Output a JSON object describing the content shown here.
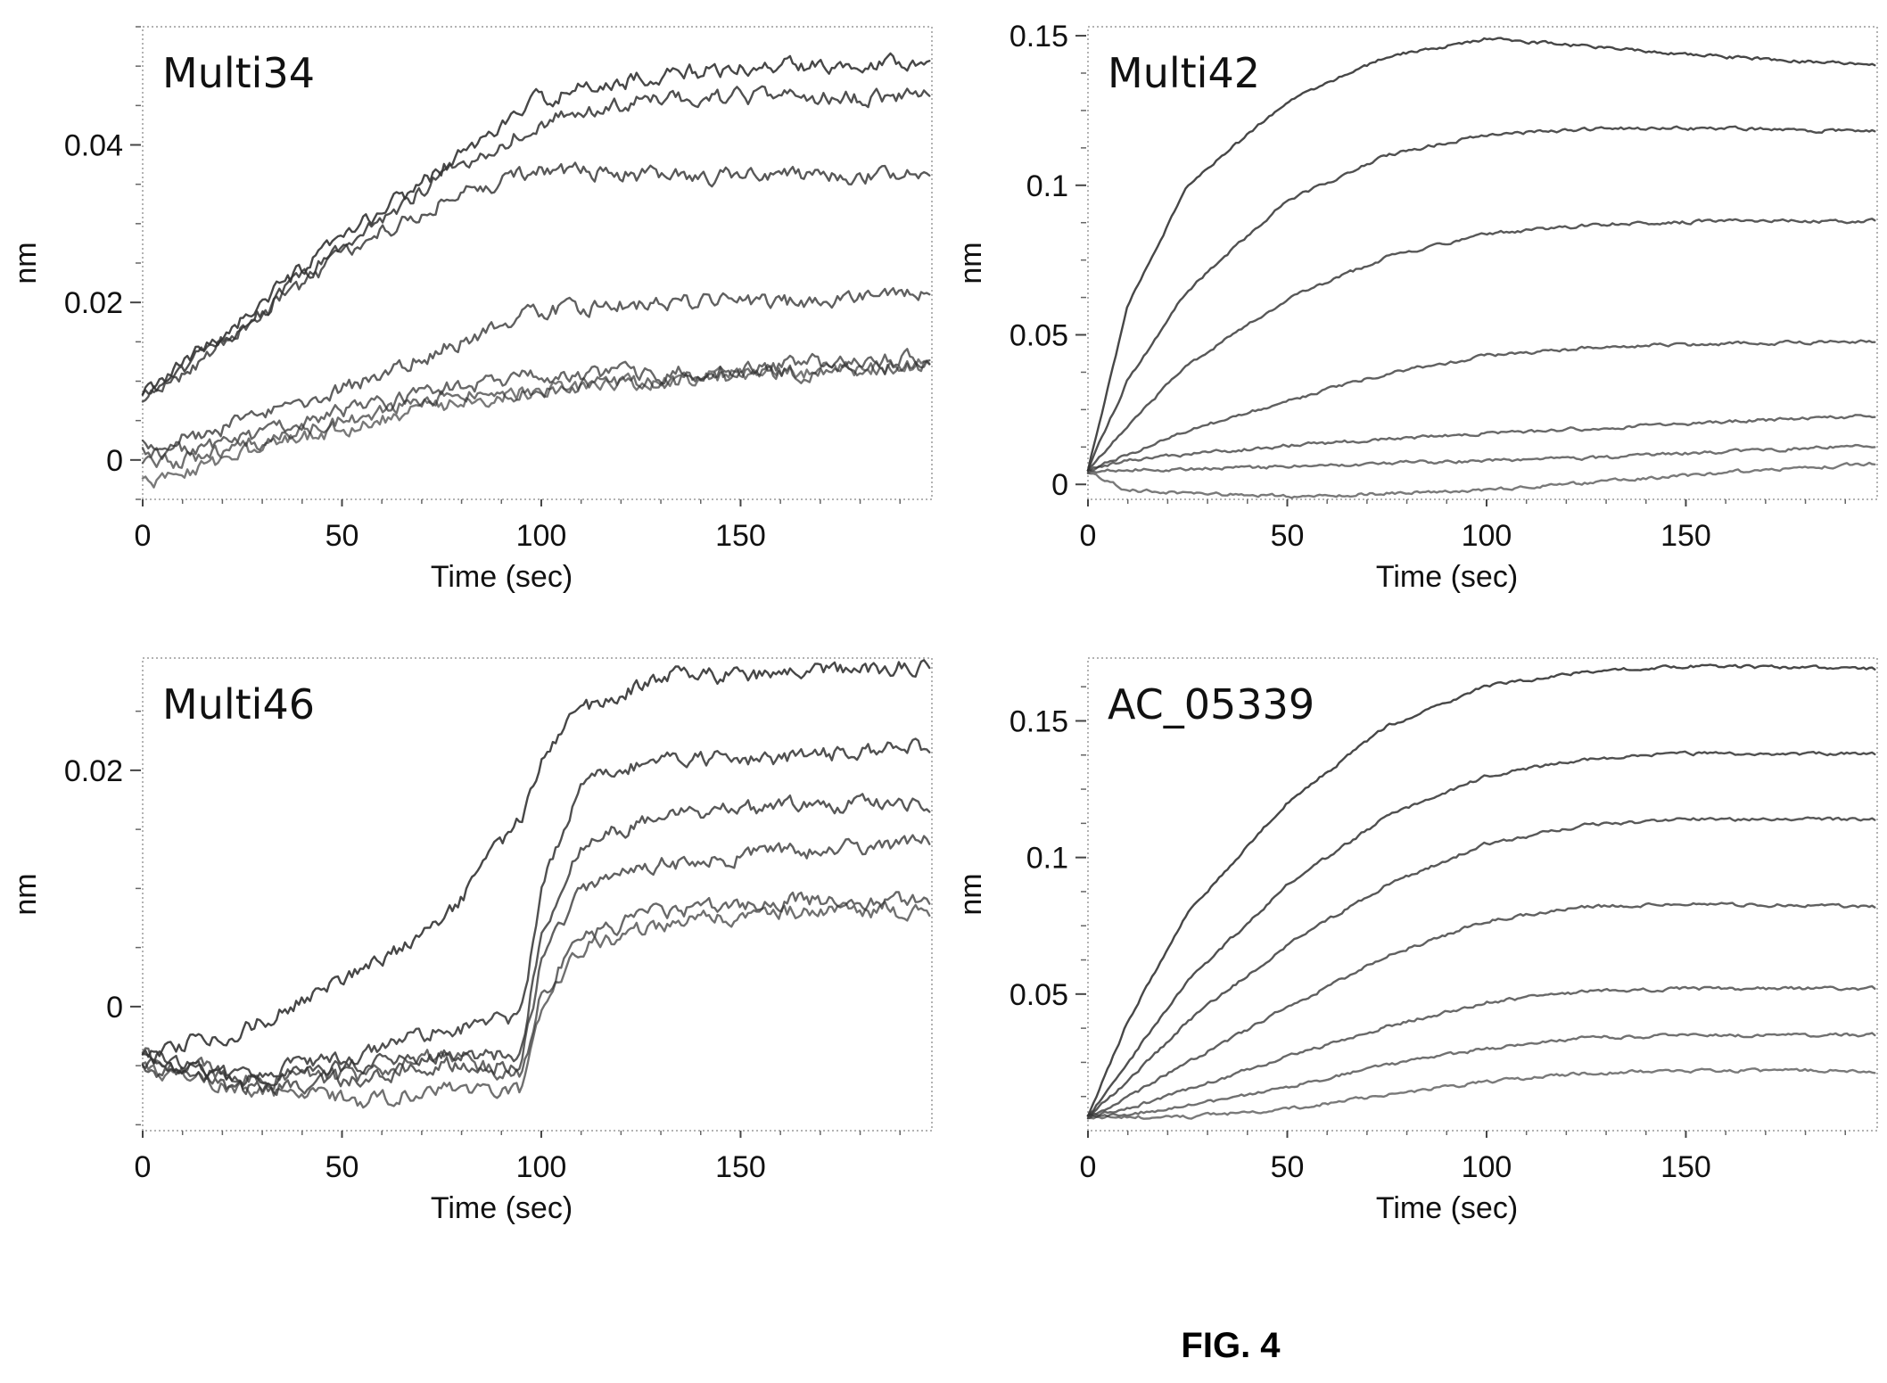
{
  "figure": {
    "caption": "FIG. 4"
  },
  "chart_data": [
    {
      "type": "line",
      "title": "Multi34",
      "xlabel": "Time (sec)",
      "ylabel": "nm",
      "xlim": [
        0,
        198
      ],
      "ylim": [
        -0.005,
        0.055
      ],
      "xticks": [
        0,
        50,
        100,
        150
      ],
      "xtick_labels": [
        "0",
        "50",
        "100",
        "150"
      ],
      "yticks": [
        0,
        0.02,
        0.04
      ],
      "ytick_labels": [
        "0",
        "0.02",
        "0.04"
      ],
      "grid": false,
      "legend": "none",
      "trace_color": "#333333",
      "series": [
        {
          "x": [
            0,
            20,
            50,
            75,
            100,
            130,
            160,
            198
          ],
          "values": [
            0.008,
            0.016,
            0.028,
            0.037,
            0.046,
            0.049,
            0.05,
            0.051
          ]
        },
        {
          "x": [
            0,
            20,
            50,
            75,
            100,
            130,
            160,
            198
          ],
          "values": [
            0.008,
            0.015,
            0.027,
            0.036,
            0.043,
            0.046,
            0.046,
            0.046
          ]
        },
        {
          "x": [
            0,
            20,
            50,
            75,
            100,
            130,
            160,
            198
          ],
          "values": [
            0.007,
            0.015,
            0.026,
            0.033,
            0.037,
            0.036,
            0.036,
            0.036
          ]
        },
        {
          "x": [
            0,
            20,
            50,
            75,
            100,
            130,
            160,
            198
          ],
          "values": [
            0.002,
            0.004,
            0.009,
            0.014,
            0.019,
            0.02,
            0.02,
            0.021
          ]
        },
        {
          "x": [
            0,
            20,
            50,
            75,
            100,
            130,
            160,
            198
          ],
          "values": [
            0.001,
            0.002,
            0.006,
            0.009,
            0.011,
            0.011,
            0.012,
            0.013
          ]
        },
        {
          "x": [
            0,
            20,
            50,
            75,
            100,
            130,
            160,
            198
          ],
          "values": [
            -0.001,
            0.001,
            0.005,
            0.008,
            0.009,
            0.01,
            0.011,
            0.012
          ]
        },
        {
          "x": [
            0,
            20,
            50,
            75,
            100,
            130,
            160,
            198
          ],
          "values": [
            -0.003,
            0.0,
            0.004,
            0.007,
            0.009,
            0.01,
            0.011,
            0.012
          ]
        }
      ]
    },
    {
      "type": "line",
      "title": "Multi42",
      "xlabel": "Time (sec)",
      "ylabel": "nm",
      "xlim": [
        0,
        198
      ],
      "ylim": [
        -0.005,
        0.153
      ],
      "xticks": [
        0,
        50,
        100,
        150
      ],
      "xtick_labels": [
        "0",
        "50",
        "100",
        "150"
      ],
      "yticks": [
        0,
        0.05,
        0.1,
        0.15
      ],
      "ytick_labels": [
        "0",
        "0.05",
        "0.1",
        "0.15"
      ],
      "grid": false,
      "legend": "none",
      "trace_color": "#333333",
      "series": [
        {
          "x": [
            0,
            10,
            25,
            50,
            75,
            100,
            130,
            160,
            198
          ],
          "values": [
            0.005,
            0.06,
            0.1,
            0.128,
            0.143,
            0.149,
            0.146,
            0.143,
            0.14
          ]
        },
        {
          "x": [
            0,
            10,
            25,
            50,
            75,
            100,
            130,
            160,
            198
          ],
          "values": [
            0.005,
            0.035,
            0.065,
            0.095,
            0.11,
            0.117,
            0.119,
            0.119,
            0.118
          ]
        },
        {
          "x": [
            0,
            10,
            25,
            50,
            75,
            100,
            130,
            160,
            198
          ],
          "values": [
            0.005,
            0.02,
            0.04,
            0.062,
            0.076,
            0.084,
            0.087,
            0.088,
            0.088
          ]
        },
        {
          "x": [
            0,
            10,
            25,
            50,
            75,
            100,
            130,
            160,
            198
          ],
          "values": [
            0.005,
            0.01,
            0.018,
            0.028,
            0.037,
            0.043,
            0.046,
            0.047,
            0.048
          ]
        },
        {
          "x": [
            0,
            10,
            25,
            50,
            75,
            100,
            130,
            160,
            198
          ],
          "values": [
            0.005,
            0.008,
            0.01,
            0.013,
            0.015,
            0.017,
            0.019,
            0.021,
            0.023
          ]
        },
        {
          "x": [
            0,
            10,
            25,
            50,
            75,
            100,
            130,
            160,
            198
          ],
          "values": [
            0.004,
            0.005,
            0.005,
            0.006,
            0.007,
            0.008,
            0.009,
            0.011,
            0.013
          ]
        },
        {
          "x": [
            0,
            10,
            25,
            50,
            75,
            100,
            130,
            160,
            198
          ],
          "values": [
            0.004,
            -0.002,
            -0.003,
            -0.004,
            -0.003,
            -0.002,
            0.001,
            0.004,
            0.007
          ]
        }
      ]
    },
    {
      "type": "line",
      "title": "Multi46",
      "xlabel": "Time (sec)",
      "ylabel": "nm",
      "xlim": [
        0,
        198
      ],
      "ylim": [
        -0.0105,
        0.0295
      ],
      "xticks": [
        0,
        50,
        100,
        150
      ],
      "xtick_labels": [
        "0",
        "50",
        "100",
        "150"
      ],
      "yticks": [
        0,
        0.02
      ],
      "ytick_labels": [
        "0",
        "0.02"
      ],
      "grid": false,
      "legend": "none",
      "trace_color": "#333333",
      "series": [
        {
          "x": [
            0,
            25,
            55,
            75,
            95,
            100,
            110,
            130,
            160,
            198
          ],
          "values": [
            -0.004,
            -0.002,
            0.003,
            0.007,
            0.016,
            0.021,
            0.025,
            0.028,
            0.028,
            0.029
          ]
        },
        {
          "x": [
            0,
            25,
            55,
            75,
            95,
            100,
            110,
            130,
            160,
            198
          ],
          "values": [
            -0.004,
            -0.006,
            -0.004,
            -0.002,
            -0.001,
            0.01,
            0.019,
            0.021,
            0.021,
            0.022
          ]
        },
        {
          "x": [
            0,
            25,
            55,
            75,
            95,
            100,
            110,
            130,
            160,
            198
          ],
          "values": [
            -0.005,
            -0.006,
            -0.005,
            -0.004,
            -0.004,
            0.006,
            0.014,
            0.016,
            0.017,
            0.017
          ]
        },
        {
          "x": [
            0,
            25,
            55,
            75,
            95,
            100,
            110,
            130,
            160,
            198
          ],
          "values": [
            -0.005,
            -0.007,
            -0.006,
            -0.005,
            -0.005,
            0.004,
            0.01,
            0.012,
            0.013,
            0.014
          ]
        },
        {
          "x": [
            0,
            25,
            55,
            75,
            95,
            100,
            110,
            130,
            160,
            198
          ],
          "values": [
            -0.004,
            -0.006,
            -0.006,
            -0.004,
            -0.006,
            0.001,
            0.006,
            0.008,
            0.009,
            0.009
          ]
        },
        {
          "x": [
            0,
            25,
            55,
            75,
            95,
            100,
            110,
            130,
            160,
            198
          ],
          "values": [
            -0.005,
            -0.007,
            -0.008,
            -0.007,
            -0.007,
            0.0,
            0.005,
            0.007,
            0.008,
            0.008
          ]
        }
      ]
    },
    {
      "type": "line",
      "title": "AC_05339",
      "xlabel": "Time (sec)",
      "ylabel": "nm",
      "xlim": [
        0,
        198
      ],
      "ylim": [
        0,
        0.173
      ],
      "xticks": [
        0,
        50,
        100,
        150
      ],
      "xtick_labels": [
        "0",
        "50",
        "100",
        "150"
      ],
      "yticks": [
        0.05,
        0.1,
        0.15
      ],
      "ytick_labels": [
        "0.05",
        "0.1",
        "0.15"
      ],
      "grid": false,
      "legend": "none",
      "trace_color": "#333333",
      "series": [
        {
          "x": [
            0,
            10,
            25,
            50,
            75,
            100,
            125,
            150,
            198
          ],
          "values": [
            0.005,
            0.04,
            0.08,
            0.12,
            0.148,
            0.163,
            0.168,
            0.17,
            0.169
          ]
        },
        {
          "x": [
            0,
            10,
            25,
            50,
            75,
            100,
            125,
            150,
            198
          ],
          "values": [
            0.005,
            0.025,
            0.055,
            0.09,
            0.115,
            0.13,
            0.136,
            0.138,
            0.138
          ]
        },
        {
          "x": [
            0,
            10,
            25,
            50,
            75,
            100,
            125,
            150,
            198
          ],
          "values": [
            0.005,
            0.018,
            0.04,
            0.068,
            0.09,
            0.105,
            0.112,
            0.114,
            0.114
          ]
        },
        {
          "x": [
            0,
            10,
            25,
            50,
            75,
            100,
            125,
            150,
            198
          ],
          "values": [
            0.005,
            0.012,
            0.025,
            0.045,
            0.064,
            0.077,
            0.082,
            0.083,
            0.082
          ]
        },
        {
          "x": [
            0,
            10,
            25,
            50,
            75,
            100,
            125,
            150,
            198
          ],
          "values": [
            0.005,
            0.008,
            0.015,
            0.027,
            0.038,
            0.047,
            0.051,
            0.052,
            0.052
          ]
        },
        {
          "x": [
            0,
            10,
            25,
            50,
            75,
            100,
            125,
            150,
            198
          ],
          "values": [
            0.005,
            0.006,
            0.009,
            0.016,
            0.024,
            0.03,
            0.034,
            0.035,
            0.035
          ]
        },
        {
          "x": [
            0,
            10,
            25,
            50,
            75,
            100,
            125,
            150,
            198
          ],
          "values": [
            0.005,
            0.005,
            0.005,
            0.008,
            0.013,
            0.018,
            0.021,
            0.022,
            0.022
          ]
        }
      ]
    }
  ]
}
